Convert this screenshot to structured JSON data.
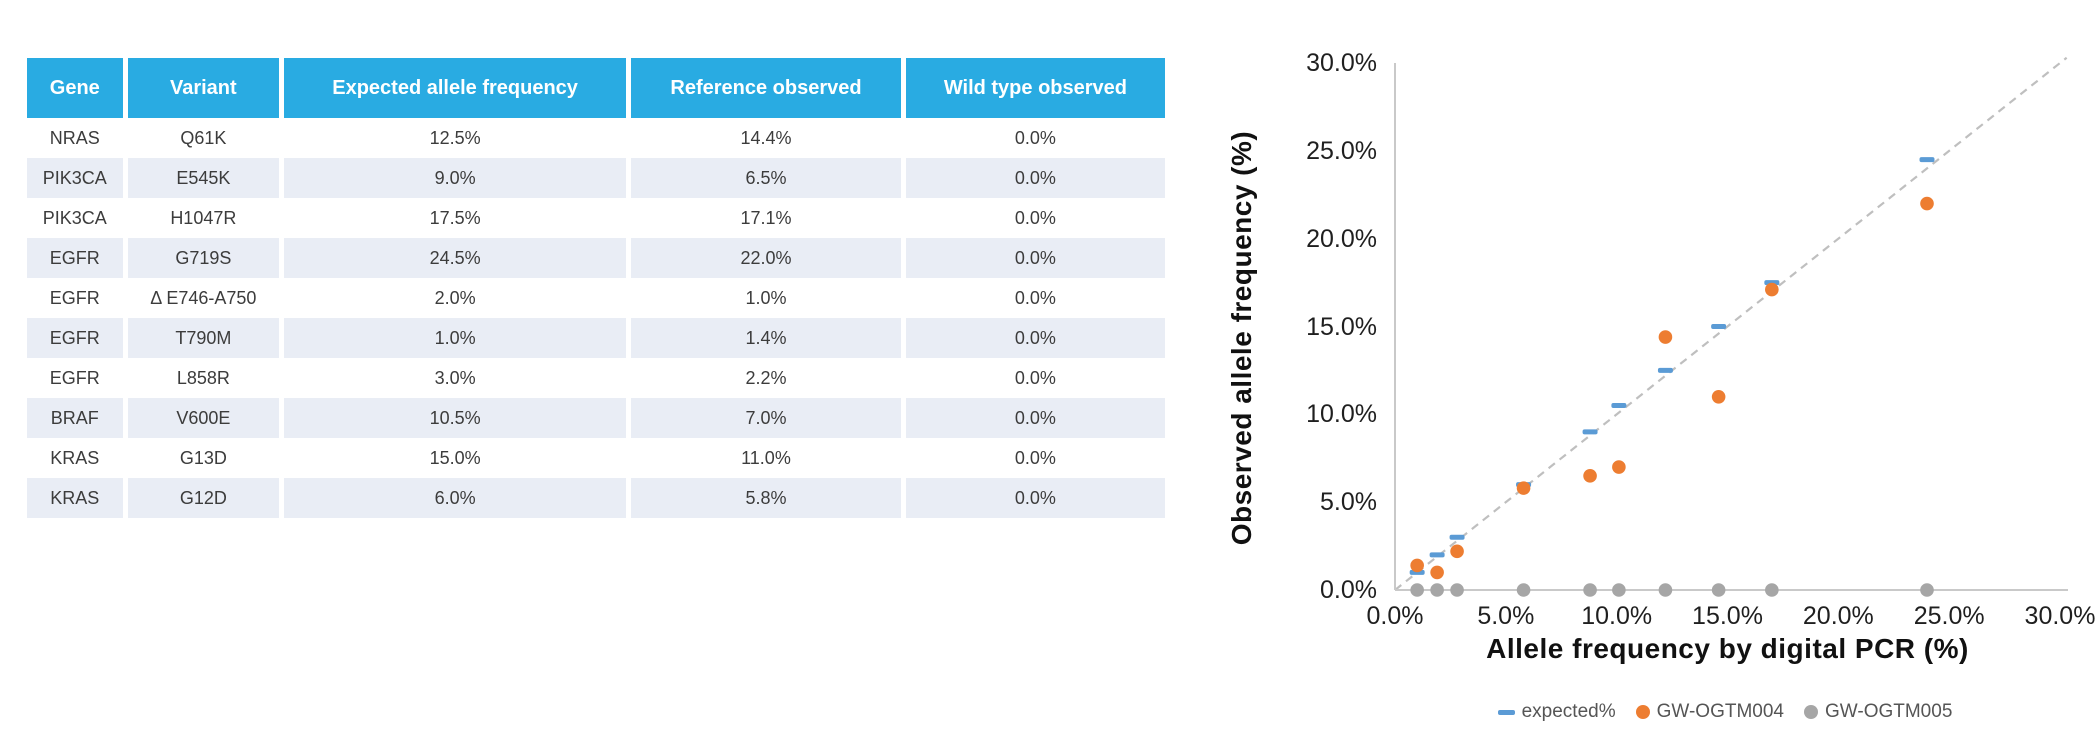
{
  "table": {
    "columns": [
      "Gene",
      "Variant",
      "Expected allele frequency",
      "Reference observed",
      "Wild type observed"
    ],
    "rows": [
      [
        "NRAS",
        "Q61K",
        "12.5%",
        "14.4%",
        "0.0%"
      ],
      [
        "PIK3CA",
        "E545K",
        "9.0%",
        "6.5%",
        "0.0%"
      ],
      [
        "PIK3CA",
        "H1047R",
        "17.5%",
        "17.1%",
        "0.0%"
      ],
      [
        "EGFR",
        "G719S",
        "24.5%",
        "22.0%",
        "0.0%"
      ],
      [
        "EGFR",
        "Δ E746-A750",
        "2.0%",
        "1.0%",
        "0.0%"
      ],
      [
        "EGFR",
        "T790M",
        "1.0%",
        "1.4%",
        "0.0%"
      ],
      [
        "EGFR",
        "L858R",
        "3.0%",
        "2.2%",
        "0.0%"
      ],
      [
        "BRAF",
        "V600E",
        "10.5%",
        "7.0%",
        "0.0%"
      ],
      [
        "KRAS",
        "G13D",
        "15.0%",
        "11.0%",
        "0.0%"
      ],
      [
        "KRAS",
        "G12D",
        "6.0%",
        "5.8%",
        "0.0%"
      ]
    ],
    "header_bg": "#29ABE2",
    "alt_row_bg": "#E9EDF5"
  },
  "chart_data": {
    "type": "scatter",
    "xlabel": "Allele frequency by digital PCR (%)",
    "ylabel": "Observed allele frequency (%)",
    "xlim": [
      0,
      30
    ],
    "ylim": [
      0,
      30
    ],
    "grid": false,
    "legend_position": "bottom",
    "x_tick_values": [
      0,
      5,
      10,
      15,
      20,
      25,
      30
    ],
    "x_ticks": [
      "0.0%",
      "5.0%",
      "10.0%",
      "15.0%",
      "20.0%",
      "25.0%",
      "30.0%"
    ],
    "y_tick_values": [
      0,
      5,
      10,
      15,
      20,
      25,
      30
    ],
    "y_ticks": [
      "0.0%",
      "5.0%",
      "10.0%",
      "15.0%",
      "20.0%",
      "25.0%",
      "30.0%"
    ],
    "reference_line": {
      "from": [
        0,
        0
      ],
      "to": [
        30.3,
        30.3
      ],
      "style": "dashed",
      "color": "#BFBFBF"
    },
    "axis_color": "#C9C9C9",
    "x": [
      1.0,
      1.9,
      2.8,
      5.8,
      8.8,
      10.1,
      12.2,
      14.6,
      17.0,
      24.0
    ],
    "series": [
      {
        "name": "expected%",
        "marker": "dash",
        "color": "#5B9BD5",
        "values": [
          1.0,
          2.0,
          3.0,
          6.0,
          9.0,
          10.5,
          12.5,
          15.0,
          17.5,
          24.5
        ]
      },
      {
        "name": "GW-OGTM004",
        "marker": "circle",
        "color": "#ED7D31",
        "values": [
          1.4,
          1.0,
          2.2,
          5.8,
          6.5,
          7.0,
          14.4,
          11.0,
          17.1,
          22.0
        ]
      },
      {
        "name": "GW-OGTM005",
        "marker": "circle",
        "color": "#A6A6A6",
        "values": [
          0,
          0,
          0,
          0,
          0,
          0,
          0,
          0,
          0,
          0
        ]
      }
    ]
  }
}
